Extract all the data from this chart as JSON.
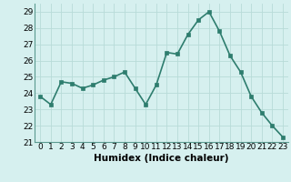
{
  "x": [
    0,
    1,
    2,
    3,
    4,
    5,
    6,
    7,
    8,
    9,
    10,
    11,
    12,
    13,
    14,
    15,
    16,
    17,
    18,
    19,
    20,
    21,
    22,
    23
  ],
  "y": [
    23.8,
    23.3,
    24.7,
    24.6,
    24.3,
    24.5,
    24.8,
    25.0,
    25.3,
    24.3,
    23.3,
    24.5,
    26.5,
    26.4,
    27.6,
    28.5,
    29.0,
    27.8,
    26.3,
    25.3,
    23.8,
    22.8,
    22.0,
    21.3
  ],
  "xlabel": "Humidex (Indice chaleur)",
  "ylim": [
    21,
    29.5
  ],
  "yticks": [
    21,
    22,
    23,
    24,
    25,
    26,
    27,
    28,
    29
  ],
  "xticks": [
    0,
    1,
    2,
    3,
    4,
    5,
    6,
    7,
    8,
    9,
    10,
    11,
    12,
    13,
    14,
    15,
    16,
    17,
    18,
    19,
    20,
    21,
    22,
    23
  ],
  "line_color": "#2e7d6e",
  "marker_color": "#2e7d6e",
  "bg_color": "#d6f0ef",
  "grid_color": "#b8dbd8",
  "xlabel_fontsize": 7.5,
  "tick_fontsize": 6.5,
  "line_width": 1.2,
  "marker_size": 2.5
}
